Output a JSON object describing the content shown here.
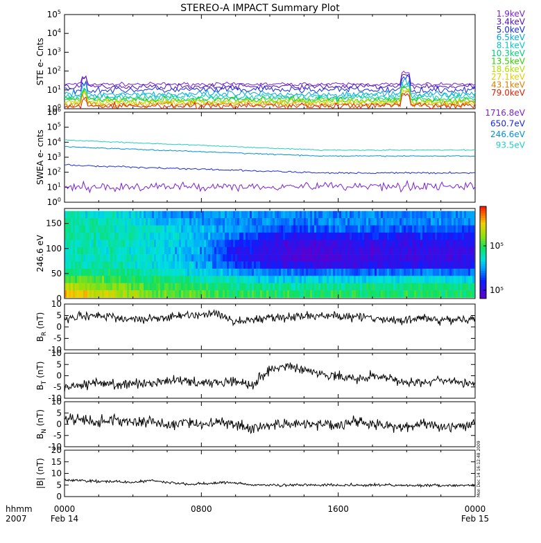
{
  "title": "STEREO-A IMPACT Summary Plot",
  "stamp": "Mon Dec 14 16:12:48 2009",
  "colors": {
    "bg": "#ffffff",
    "axis": "#000000",
    "ste_channels": [
      "#7a1fd6",
      "#5010c0",
      "#1a28e0",
      "#00a8e0",
      "#00c8c8",
      "#00d07a",
      "#30d000",
      "#b0e000",
      "#e0d000",
      "#e08000",
      "#e02000"
    ],
    "swea_channels": [
      "#7a1fd6",
      "#1a28e0",
      "#0090e0",
      "#20d0c0"
    ]
  },
  "time_axis": {
    "corner_top": "hhmm",
    "corner_bottom": "2007",
    "ticks": [
      {
        "t": 0,
        "label": "0000",
        "date": "Feb 14"
      },
      {
        "t": 8,
        "label": "0800",
        "date": ""
      },
      {
        "t": 16,
        "label": "1600",
        "date": ""
      },
      {
        "t": 24,
        "label": "0000",
        "date": "Feb 15"
      }
    ]
  },
  "chart_data": [
    {
      "type": "line",
      "id": "ste",
      "ylabel": "STE e- Cnts",
      "yscale": "log",
      "ylim": [
        1,
        100000
      ],
      "ytick_exponents": [
        0,
        1,
        2,
        3,
        4,
        5
      ],
      "legend_placement": "right",
      "series": [
        {
          "name": "1.9keV",
          "level": 20,
          "noise": 0.08
        },
        {
          "name": "3.4keV",
          "level": 15,
          "noise": 0.12
        },
        {
          "name": "5.0keV",
          "level": 10,
          "noise": 0.15
        },
        {
          "name": "6.5keV",
          "level": 6,
          "noise": 0.15
        },
        {
          "name": "8.1keV",
          "level": 4.5,
          "noise": 0.15
        },
        {
          "name": "10.3keV",
          "level": 3.5,
          "noise": 0.15
        },
        {
          "name": "13.5keV",
          "level": 2.8,
          "noise": 0.15
        },
        {
          "name": "18.6keV",
          "level": 2.3,
          "noise": 0.15
        },
        {
          "name": "27.1keV",
          "level": 2,
          "noise": 0.15
        },
        {
          "name": "43.1keV",
          "level": 1.7,
          "noise": 0.15
        },
        {
          "name": "79.0keV",
          "level": 1.4,
          "noise": 0.15
        }
      ]
    },
    {
      "type": "line",
      "id": "swea",
      "ylabel": "SWEA e- cnts",
      "yscale": "log",
      "ylim": [
        1,
        1000000
      ],
      "ytick_exponents": [
        0,
        1,
        2,
        3,
        4,
        5,
        6
      ],
      "legend_placement": "right",
      "series": [
        {
          "name": "1716.8eV",
          "start": 10,
          "end": 12,
          "noise": 0.25
        },
        {
          "name": "650.7eV",
          "start": 300,
          "end": 90,
          "noise": 0.05
        },
        {
          "name": "246.6eV",
          "start": 5000,
          "end": 1200,
          "noise": 0.03
        },
        {
          "name": "93.5eV",
          "start": 14000,
          "end": 3000,
          "noise": 0.03
        }
      ]
    },
    {
      "type": "heatmap",
      "id": "pad",
      "ylabel": "246.6 eV",
      "ylim": [
        0,
        180
      ],
      "yticks": [
        0,
        50,
        100,
        150
      ],
      "colorbar_labels": [
        "10⁵",
        "10⁵"
      ],
      "rows": [
        "170",
        "155",
        "140",
        "125",
        "110",
        "95",
        "80",
        "65",
        "50",
        "35",
        "20",
        "10"
      ],
      "columns_hours": [
        0,
        2,
        4,
        6,
        8,
        10,
        12,
        14,
        16,
        18,
        20,
        22
      ],
      "values": [
        [
          0.45,
          0.45,
          0.4,
          0.3,
          0.3,
          0.3,
          0.3,
          0.28,
          0.3,
          0.3,
          0.3,
          0.3
        ],
        [
          0.5,
          0.48,
          0.42,
          0.35,
          0.3,
          0.3,
          0.28,
          0.28,
          0.3,
          0.3,
          0.3,
          0.3
        ],
        [
          0.5,
          0.48,
          0.45,
          0.4,
          0.35,
          0.3,
          0.25,
          0.22,
          0.25,
          0.25,
          0.25,
          0.25
        ],
        [
          0.5,
          0.48,
          0.45,
          0.42,
          0.35,
          0.25,
          0.15,
          0.12,
          0.15,
          0.15,
          0.15,
          0.15
        ],
        [
          0.48,
          0.47,
          0.45,
          0.42,
          0.35,
          0.2,
          0.1,
          0.05,
          0.08,
          0.1,
          0.1,
          0.1
        ],
        [
          0.48,
          0.46,
          0.44,
          0.4,
          0.32,
          0.15,
          0.08,
          0.02,
          0.05,
          0.08,
          0.08,
          0.08
        ],
        [
          0.48,
          0.46,
          0.44,
          0.4,
          0.32,
          0.15,
          0.08,
          0.02,
          0.05,
          0.08,
          0.08,
          0.08
        ],
        [
          0.5,
          0.48,
          0.45,
          0.42,
          0.35,
          0.22,
          0.12,
          0.08,
          0.1,
          0.1,
          0.12,
          0.12
        ],
        [
          0.55,
          0.52,
          0.5,
          0.45,
          0.4,
          0.32,
          0.28,
          0.25,
          0.25,
          0.25,
          0.28,
          0.28
        ],
        [
          0.62,
          0.6,
          0.55,
          0.52,
          0.48,
          0.45,
          0.4,
          0.4,
          0.4,
          0.4,
          0.42,
          0.42
        ],
        [
          0.75,
          0.68,
          0.62,
          0.58,
          0.55,
          0.52,
          0.5,
          0.5,
          0.5,
          0.5,
          0.52,
          0.52
        ],
        [
          0.85,
          0.75,
          0.7,
          0.62,
          0.6,
          0.58,
          0.55,
          0.55,
          0.55,
          0.55,
          0.55,
          0.55
        ]
      ]
    },
    {
      "type": "line",
      "id": "br",
      "ylabel_main": "B",
      "ylabel_sub": "R",
      "ylabel_unit": " (nT)",
      "ylim": [
        -10,
        10
      ],
      "yticks": [
        -10,
        -5,
        0,
        5,
        10
      ],
      "x": [
        0,
        1,
        2,
        3,
        4,
        5,
        6,
        7,
        8,
        9,
        10,
        11,
        12,
        13,
        14,
        15,
        16,
        17,
        18,
        19,
        20,
        21,
        22,
        23,
        24
      ],
      "y": [
        3,
        5,
        5,
        4,
        3,
        4,
        4,
        5,
        5,
        6,
        2,
        3,
        4,
        4,
        5,
        5,
        5,
        4,
        4,
        3,
        3,
        4,
        3,
        3,
        3
      ],
      "noise": 1.6
    },
    {
      "type": "line",
      "id": "bt",
      "ylabel_main": "B",
      "ylabel_sub": "T",
      "ylabel_unit": " (nT)",
      "ylim": [
        -10,
        10
      ],
      "yticks": [
        -10,
        -5,
        0,
        5,
        10
      ],
      "x": [
        0,
        1,
        2,
        3,
        4,
        5,
        6,
        7,
        8,
        9,
        10,
        11,
        12,
        13,
        14,
        15,
        16,
        17,
        18,
        19,
        20,
        21,
        22,
        23,
        24
      ],
      "y": [
        -5,
        -4,
        -3,
        -4,
        -4,
        -3,
        -2,
        -2,
        -3,
        -3,
        -2,
        -4,
        3,
        4,
        3,
        1,
        0,
        -2,
        0,
        -1,
        -3,
        -3,
        -2,
        -3,
        -4
      ],
      "noise": 1.8
    },
    {
      "type": "line",
      "id": "bn",
      "ylabel_main": "B",
      "ylabel_sub": "N",
      "ylabel_unit": " (nT)",
      "ylim": [
        -10,
        10
      ],
      "yticks": [
        -10,
        -5,
        0,
        5,
        10
      ],
      "x": [
        0,
        1,
        2,
        3,
        4,
        5,
        6,
        7,
        8,
        9,
        10,
        11,
        12,
        13,
        14,
        15,
        16,
        17,
        18,
        19,
        20,
        21,
        22,
        23,
        24
      ],
      "y": [
        2,
        2,
        1,
        2,
        1,
        1,
        0,
        1,
        0,
        1,
        0,
        -2,
        0,
        0,
        0,
        0,
        0,
        1,
        0,
        -1,
        -1,
        0,
        -1,
        -1,
        0
      ],
      "noise": 2.0
    },
    {
      "type": "line",
      "id": "bmag",
      "ylabel_main": "|B|",
      "ylabel_unit": " (nT)",
      "ylim": [
        0,
        20
      ],
      "yticks": [
        0,
        5,
        10,
        15,
        20
      ],
      "x": [
        0,
        1,
        2,
        3,
        4,
        5,
        6,
        7,
        8,
        9,
        10,
        11,
        12,
        13,
        14,
        15,
        16,
        17,
        18,
        19,
        20,
        21,
        22,
        23,
        24
      ],
      "y": [
        7,
        7,
        6.5,
        6.5,
        6,
        7,
        6,
        5.5,
        5.5,
        6,
        6,
        5,
        5,
        5,
        5,
        5,
        5,
        5,
        5,
        5,
        4.8,
        4.8,
        4.8,
        4.8,
        4.8
      ],
      "noise": 0.5
    }
  ]
}
